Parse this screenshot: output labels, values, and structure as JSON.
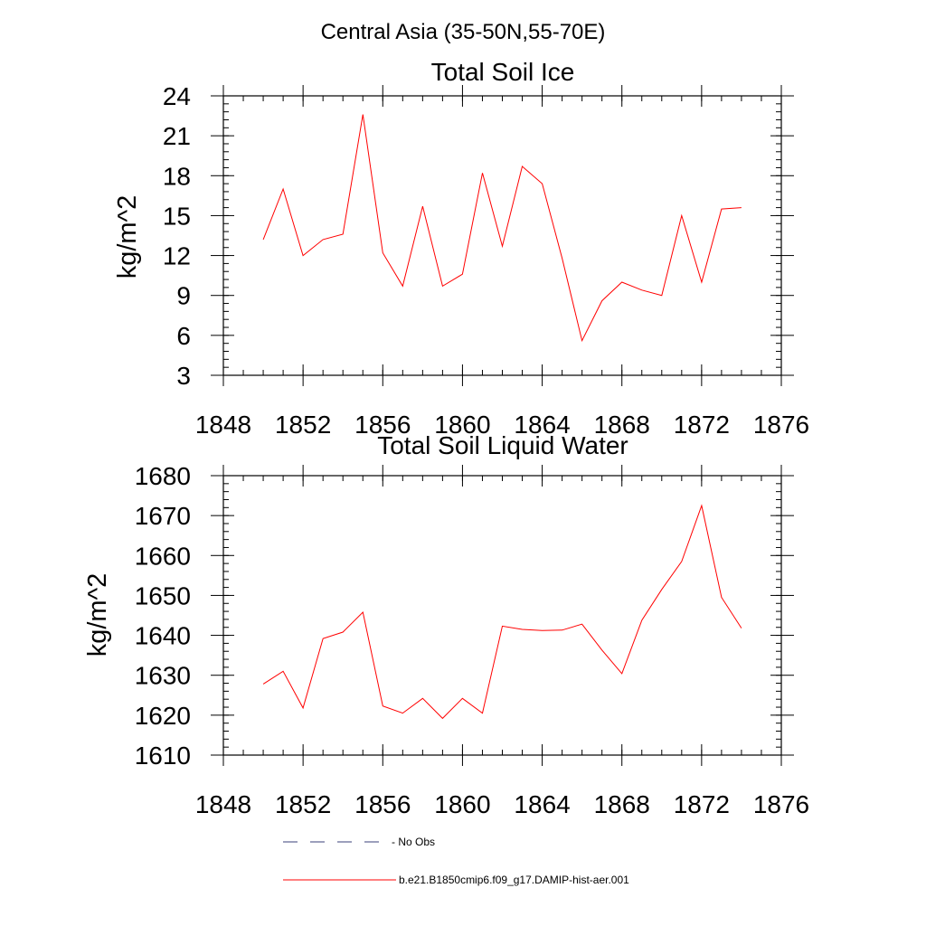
{
  "figure": {
    "title": "Central Asia (35-50N,55-70E)"
  },
  "chart_data": [
    {
      "type": "line",
      "title": "Total Soil Ice",
      "xlabel": "",
      "ylabel": "kg/m^2",
      "xlim": [
        1848,
        1876
      ],
      "ylim": [
        3,
        24
      ],
      "xticks": [
        1848,
        1852,
        1856,
        1860,
        1864,
        1868,
        1872,
        1876
      ],
      "yticks": [
        3,
        6,
        9,
        12,
        15,
        18,
        21,
        24
      ],
      "yminor_step": 0.6,
      "xminor_step": 1,
      "series": [
        {
          "name": "b.e21.B1850cmip6.f09_g17.DAMIP-hist-aer.001",
          "color": "#ff0000",
          "x": [
            1850,
            1851,
            1852,
            1853,
            1854,
            1855,
            1856,
            1857,
            1858,
            1859,
            1860,
            1861,
            1862,
            1863,
            1864,
            1865,
            1866,
            1867,
            1868,
            1869,
            1870,
            1871,
            1872,
            1873,
            1874
          ],
          "y": [
            13.2,
            17.0,
            12.0,
            13.2,
            13.6,
            22.6,
            12.2,
            9.7,
            15.7,
            9.7,
            10.6,
            18.2,
            12.7,
            18.7,
            17.4,
            11.8,
            5.6,
            8.6,
            10.0,
            9.4,
            9.0,
            15.0,
            10.0,
            15.5,
            15.6
          ]
        }
      ]
    },
    {
      "type": "line",
      "title": "Total Soil Liquid Water",
      "xlabel": "",
      "ylabel": "kg/m^2",
      "xlim": [
        1848,
        1876
      ],
      "ylim": [
        1610,
        1680
      ],
      "xticks": [
        1848,
        1852,
        1856,
        1860,
        1864,
        1868,
        1872,
        1876
      ],
      "yticks": [
        1610,
        1620,
        1630,
        1640,
        1650,
        1660,
        1670,
        1680
      ],
      "yminor_step": 2,
      "xminor_step": 1,
      "series": [
        {
          "name": "b.e21.B1850cmip6.f09_g17.DAMIP-hist-aer.001",
          "color": "#ff0000",
          "x": [
            1850,
            1851,
            1852,
            1853,
            1854,
            1855,
            1856,
            1857,
            1858,
            1859,
            1860,
            1861,
            1862,
            1863,
            1864,
            1865,
            1866,
            1867,
            1868,
            1869,
            1870,
            1871,
            1872,
            1873,
            1874
          ],
          "y": [
            1627.8,
            1631.0,
            1621.8,
            1639.2,
            1640.8,
            1645.8,
            1622.3,
            1620.5,
            1624.2,
            1619.2,
            1624.2,
            1620.5,
            1642.3,
            1641.5,
            1641.2,
            1641.3,
            1642.8,
            1636.3,
            1630.4,
            1643.8,
            1651.5,
            1658.5,
            1672.5,
            1649.5,
            1641.8
          ]
        }
      ]
    }
  ],
  "legend": {
    "placement": "bottom-center",
    "items": [
      {
        "label": "- No Obs",
        "color": "#3a3f7a",
        "style": "dashed"
      },
      {
        "label": "b.e21.B1850cmip6.f09_g17.DAMIP-hist-aer.001",
        "color": "#ff0000",
        "style": "solid"
      }
    ]
  }
}
